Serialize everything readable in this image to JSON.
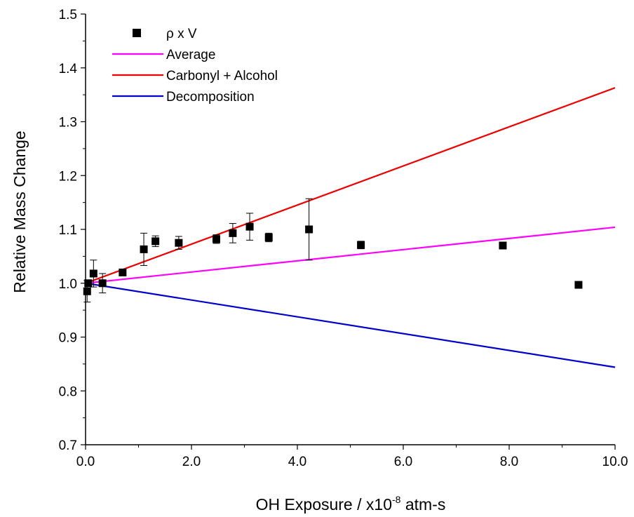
{
  "chart_data": {
    "type": "scatter",
    "title": "",
    "xlabel": "OH Exposure / x10",
    "xlabel_superscript": "-8",
    "xlabel_suffix": " atm-s",
    "ylabel": "Relative Mass Change",
    "xlim": [
      0,
      10
    ],
    "ylim": [
      0.7,
      1.5
    ],
    "x_ticks": [
      0.0,
      2.0,
      4.0,
      6.0,
      8.0,
      10.0
    ],
    "x_tick_labels": [
      "0.0",
      "2.0",
      "4.0",
      "6.0",
      "8.0",
      "10.0"
    ],
    "y_ticks": [
      0.7,
      0.8,
      0.9,
      1.0,
      1.1,
      1.2,
      1.3,
      1.4,
      1.5
    ],
    "y_tick_labels": [
      "0.7",
      "0.8",
      "0.9",
      "1.0",
      "1.1",
      "1.2",
      "1.3",
      "1.4",
      "1.5"
    ],
    "grid": false,
    "legend_position": "top-left",
    "series": [
      {
        "name": "ρ x V",
        "kind": "points",
        "color": "#000000",
        "marker": "square",
        "x": [
          0.03,
          0.05,
          0.15,
          0.32,
          0.7,
          1.1,
          1.32,
          1.76,
          2.47,
          2.78,
          3.1,
          3.46,
          4.22,
          5.2,
          7.88,
          9.31
        ],
        "y": [
          0.985,
          1.0,
          1.018,
          1.0,
          1.02,
          1.063,
          1.078,
          1.075,
          1.082,
          1.093,
          1.105,
          1.085,
          1.1,
          1.071,
          1.07,
          0.997
        ],
        "err": [
          0.02,
          0.0,
          0.025,
          0.018,
          0.004,
          0.03,
          0.01,
          0.012,
          0.008,
          0.018,
          0.025,
          0.008,
          0.057,
          0.007,
          0.0,
          0.0
        ]
      },
      {
        "name": "Average",
        "kind": "line",
        "color": "#ff00ff",
        "x": [
          0,
          10
        ],
        "y": [
          1.0,
          1.104
        ]
      },
      {
        "name": "Carbonyl + Alcohol",
        "kind": "line",
        "color": "#ee0000",
        "x": [
          0,
          10
        ],
        "y": [
          1.0,
          1.363
        ]
      },
      {
        "name": "Decomposition",
        "kind": "line",
        "color": "#0000cc",
        "x": [
          0,
          10
        ],
        "y": [
          1.0,
          0.844
        ]
      }
    ]
  }
}
